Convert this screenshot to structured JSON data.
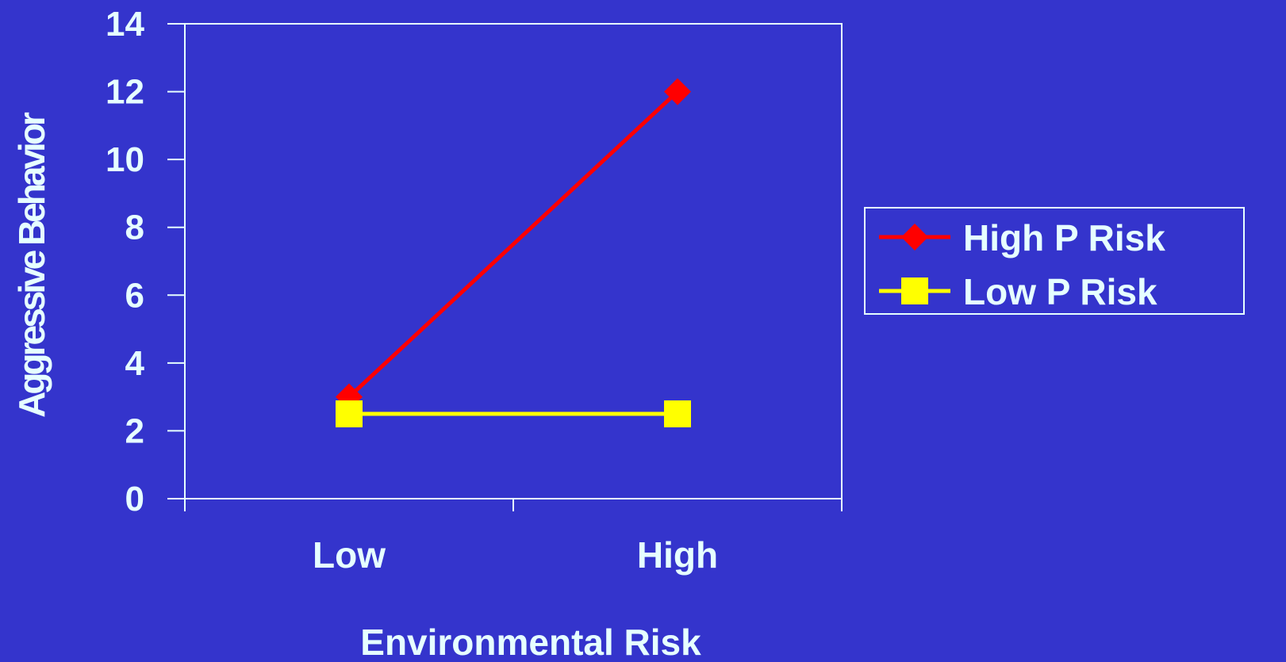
{
  "colors": {
    "background": "#3434cc",
    "axis": "#e6ffff",
    "text": "#e6ffff",
    "series_high": "#ff0000",
    "series_low": "#ffff00"
  },
  "chart_data": {
    "type": "line",
    "title": "",
    "xlabel": "Environmental Risk",
    "ylabel": "Aggressive Behavior",
    "categories": [
      "Low",
      "High"
    ],
    "ylim": [
      0,
      14
    ],
    "yticks": [
      0,
      2,
      4,
      6,
      8,
      10,
      12,
      14
    ],
    "grid": false,
    "legend_position": "right",
    "series": [
      {
        "name": "High P Risk",
        "values": [
          3,
          12
        ],
        "color": "#ff0000",
        "marker": "diamond"
      },
      {
        "name": "Low P Risk",
        "values": [
          2.5,
          2.5
        ],
        "color": "#ffff00",
        "marker": "square"
      }
    ]
  }
}
